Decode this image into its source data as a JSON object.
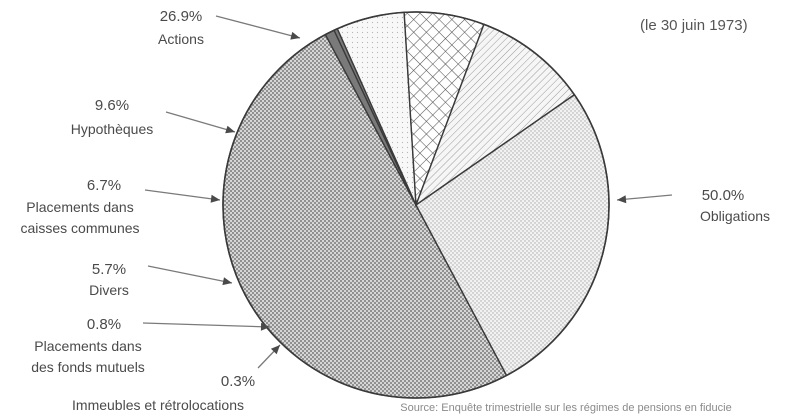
{
  "chart_data": {
    "type": "pie",
    "date_label": "(le 30 juin 1973)",
    "source": "Source: Enquête trimestrielle sur les régimes de pensions en fiducie",
    "slices": [
      {
        "label": "Obligations",
        "value_label": "50.0%",
        "value": 50.0,
        "pattern": "dots"
      },
      {
        "label": "Placements dans des fonds mutuels",
        "value_label": "0.8%",
        "value": 0.8,
        "pattern": "solid"
      },
      {
        "label": "Immeubles et rétrolocations",
        "value_label": "0.3%",
        "value": 0.3,
        "pattern": "solid"
      },
      {
        "label": "Divers",
        "value_label": "5.7%",
        "value": 5.7,
        "pattern": "light-dots"
      },
      {
        "label": "Placements dans caisses communes",
        "value_label": "6.7%",
        "value": 6.7,
        "pattern": "crosshatch"
      },
      {
        "label": "Hypothèques",
        "value_label": "9.6%",
        "value": 9.6,
        "pattern": "hatch"
      },
      {
        "label": "Actions",
        "value_label": "26.9%",
        "value": 26.9,
        "pattern": "fine-dots"
      }
    ]
  }
}
